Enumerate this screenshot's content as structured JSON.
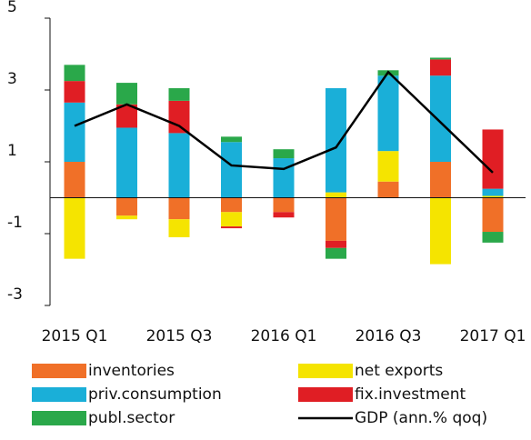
{
  "chart_data": {
    "type": "stacked_bar_line",
    "categories": [
      "2015 Q1",
      null,
      "2015 Q3",
      null,
      "2016 Q1",
      null,
      "2016 Q3",
      null,
      "2017 Q1"
    ],
    "ylim": [
      -3,
      5
    ],
    "yticks": [
      -3,
      -1,
      1,
      3,
      5
    ],
    "series": [
      {
        "name": "inventories",
        "color": "#f07028",
        "values": [
          1.0,
          -0.5,
          -0.6,
          -0.4,
          -0.4,
          -1.2,
          0.45,
          1.0,
          -0.95
        ]
      },
      {
        "name": "net exports",
        "color": "#f5e400",
        "values": [
          -1.7,
          -0.1,
          -0.5,
          -0.4,
          0,
          0.15,
          0.85,
          -1.85,
          0.05
        ]
      },
      {
        "name": "priv.consumption",
        "color": "#1aafd8",
        "values": [
          1.65,
          1.95,
          1.8,
          1.55,
          1.1,
          2.9,
          2.1,
          2.4,
          0.2
        ]
      },
      {
        "name": "fix.investment",
        "color": "#e01e24",
        "values": [
          0.6,
          0.65,
          0.9,
          -0.05,
          -0.15,
          -0.2,
          0,
          0.45,
          1.65
        ]
      },
      {
        "name": "publ.sector",
        "color": "#2aa84a",
        "values": [
          0.45,
          0.6,
          0.35,
          0.15,
          0.25,
          -0.3,
          0.15,
          0.05,
          -0.3
        ]
      },
      {
        "name": "GDP (ann.% qoq)",
        "color": "#000000",
        "type": "line",
        "values": [
          2.0,
          2.6,
          2.0,
          0.9,
          0.8,
          1.4,
          3.5,
          2.1,
          0.7
        ]
      }
    ]
  }
}
